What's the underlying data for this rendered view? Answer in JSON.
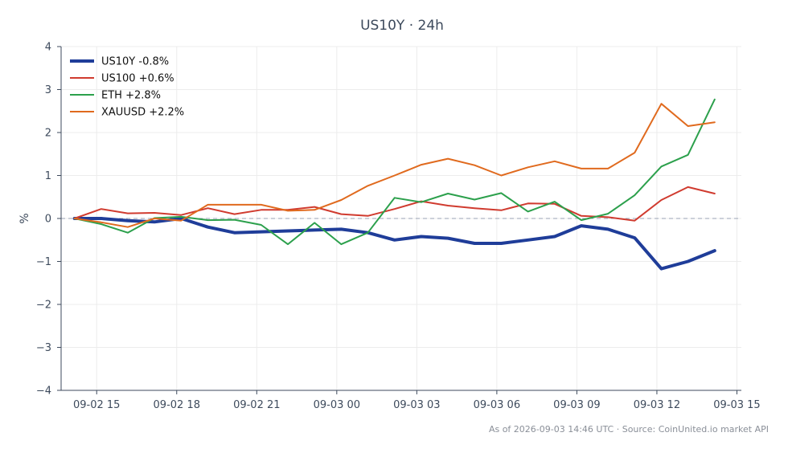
{
  "chart_data": {
    "type": "line",
    "title": "US10Y · 24h",
    "ylabel": "%",
    "xlabel": "",
    "ylim": [
      -4,
      4
    ],
    "yticks": [
      -4,
      -3,
      -2,
      -1,
      0,
      1,
      2,
      3,
      4
    ],
    "ytick_labels": [
      "−4",
      "−3",
      "−2",
      "−1",
      "0",
      "1",
      "2",
      "3",
      "4"
    ],
    "xticks": [
      {
        "t": "2026-09-02T15:00",
        "label": "09-02 15"
      },
      {
        "t": "2026-09-02T18:00",
        "label": "09-02 18"
      },
      {
        "t": "2026-09-02T21:00",
        "label": "09-02 21"
      },
      {
        "t": "2026-09-03T00:00",
        "label": "09-03 00"
      },
      {
        "t": "2026-09-03T03:00",
        "label": "09-03 03"
      },
      {
        "t": "2026-09-03T06:00",
        "label": "09-03 06"
      },
      {
        "t": "2026-09-03T09:00",
        "label": "09-03 09"
      },
      {
        "t": "2026-09-03T12:00",
        "label": "09-03 12"
      },
      {
        "t": "2026-09-03T15:00",
        "label": "09-03 15"
      }
    ],
    "xlim": [
      "2026-09-02T13:40",
      "2026-09-03T15:10"
    ],
    "x": [
      "2026-09-02T14:10",
      "2026-09-02T15:10",
      "2026-09-02T16:10",
      "2026-09-02T17:10",
      "2026-09-02T18:10",
      "2026-09-02T19:10",
      "2026-09-02T20:10",
      "2026-09-02T21:10",
      "2026-09-02T22:10",
      "2026-09-02T23:10",
      "2026-09-03T00:10",
      "2026-09-03T01:10",
      "2026-09-03T02:10",
      "2026-09-03T03:10",
      "2026-09-03T04:10",
      "2026-09-03T05:10",
      "2026-09-03T06:10",
      "2026-09-03T07:10",
      "2026-09-03T08:10",
      "2026-09-03T09:10",
      "2026-09-03T10:10",
      "2026-09-03T11:10",
      "2026-09-03T12:10",
      "2026-09-03T13:10",
      "2026-09-03T14:10"
    ],
    "grid": true,
    "legend_position": "top-left",
    "zero_line": true,
    "series": [
      {
        "name": "US10Y -0.8%",
        "color": "#1f3d99",
        "width": 4,
        "values": [
          0.0,
          0.0,
          -0.05,
          -0.08,
          0.0,
          -0.2,
          -0.33,
          -0.31,
          -0.29,
          -0.27,
          -0.25,
          -0.33,
          -0.5,
          -0.42,
          -0.46,
          -0.58,
          -0.58,
          -0.5,
          -0.42,
          -0.17,
          -0.25,
          -0.45,
          -1.17,
          -1.0,
          -0.75
        ]
      },
      {
        "name": "US100 +0.6%",
        "color": "#d03b2f",
        "width": 2,
        "values": [
          0.0,
          0.22,
          0.12,
          0.13,
          0.08,
          0.24,
          0.1,
          0.2,
          0.2,
          0.27,
          0.1,
          0.06,
          0.22,
          0.4,
          0.3,
          0.24,
          0.19,
          0.35,
          0.34,
          0.06,
          0.03,
          -0.05,
          0.43,
          0.73,
          0.58
        ]
      },
      {
        "name": "ETH +2.8%",
        "color": "#2ca04c",
        "width": 2,
        "values": [
          0.0,
          -0.13,
          -0.33,
          0.01,
          0.04,
          -0.04,
          -0.03,
          -0.15,
          -0.6,
          -0.1,
          -0.6,
          -0.33,
          0.48,
          0.38,
          0.58,
          0.44,
          0.59,
          0.16,
          0.39,
          -0.04,
          0.11,
          0.54,
          1.21,
          1.48,
          2.77
        ]
      },
      {
        "name": "XAUUSD +2.2%",
        "color": "#e06a1e",
        "width": 2,
        "values": [
          0.0,
          -0.09,
          -0.2,
          0.0,
          -0.05,
          0.32,
          0.32,
          0.32,
          0.18,
          0.2,
          0.43,
          0.76,
          1.0,
          1.25,
          1.39,
          1.24,
          1.0,
          1.19,
          1.33,
          1.16,
          1.16,
          1.53,
          2.67,
          2.15,
          2.24
        ]
      }
    ],
    "footer": "As of 2026-09-03 14:46 UTC · Source: CoinUnited.io market API"
  }
}
